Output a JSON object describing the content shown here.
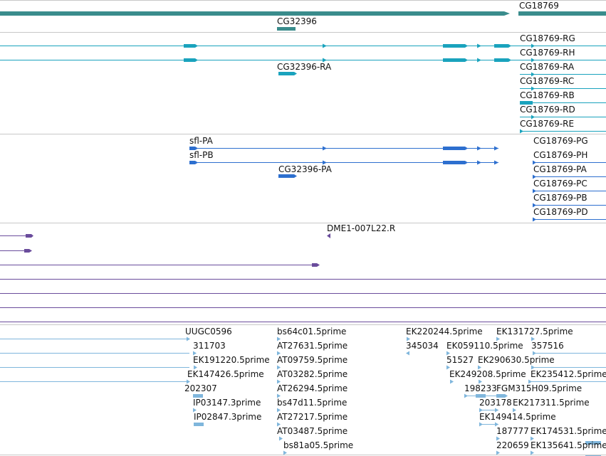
{
  "colors": {
    "background": "#ffffff",
    "divider": "#c8c8c8",
    "gene": "#3a8c8c",
    "transcript_flybase": "#1aa3bd",
    "transcript_predicted": "#2d6fcf",
    "alignment": "#6a4c9c",
    "est": "#7fb6dc",
    "label": "#111111"
  },
  "tracks": {
    "genes": {
      "labels": [
        "CG18769",
        "CG32396"
      ]
    },
    "flybase_transcripts": {
      "labels": [
        "CG18769-RG",
        "CG18769-RH",
        "CG32396-RA",
        "CG18769-RA",
        "CG18769-RC",
        "CG18769-RB",
        "CG18769-RD",
        "CG18769-RE"
      ]
    },
    "predicted_transcripts": {
      "labels": [
        "sfl-PA",
        "sfl-PB",
        "CG32396-PA",
        "CG18769-PG",
        "CG18769-PH",
        "CG18769-PA",
        "CG18769-PC",
        "CG18769-PB",
        "CG18769-PD"
      ]
    },
    "alignments": {
      "labels": [
        "DME1-007L22.R"
      ]
    },
    "ests": {
      "labels": [
        "UUGC0596",
        "bs64c01.5prime",
        "EK220244.5prime",
        "EK131727.5prime",
        "311703",
        "AT27631.5prime",
        "345034",
        "EK059110.5prime",
        "357516",
        "EK191220.5prime",
        "AT09759.5prime",
        "51527",
        "EK290630.5prime",
        "EK147426.5prime",
        "AT03282.5prime",
        "EK249208.5prime",
        "EK235412.5prime",
        "202307",
        "AT26294.5prime",
        "198233",
        "FGM315H09.5prime",
        "IP03147.3prime",
        "bs47d11.5prime",
        "203178",
        "EK217311.5prime",
        "IP02847.3prime",
        "AT27217.5prime",
        "EK149414.5prime",
        "AT03487.5prime",
        "187777",
        "EK174531.5prime",
        "bs81a05.5prime",
        "220659",
        "EK135641.5prime"
      ]
    }
  }
}
